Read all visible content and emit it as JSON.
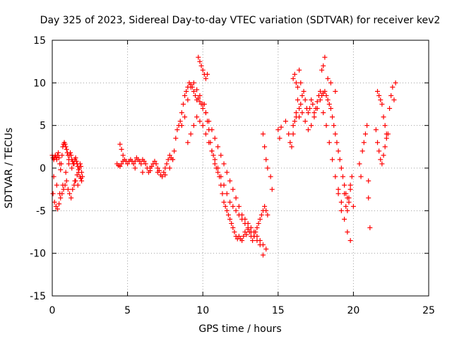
{
  "chart_data": {
    "type": "scatter",
    "title": "Day 325 of 2023, Sidereal Day-to-day VTEC variation (SDTVAR) for receiver kev2",
    "xlabel": "GPS time / hours",
    "ylabel": "SDTVAR / TECUs",
    "xlim": [
      0,
      25
    ],
    "ylim": [
      -15,
      15
    ],
    "xticks": [
      "0",
      "5",
      "10",
      "15",
      "20",
      "25"
    ],
    "yticks": [
      "-15",
      "-10",
      "-5",
      "0",
      "5",
      "10",
      "15"
    ],
    "grid": true,
    "marker": "+",
    "color": "#ff0000",
    "series": [
      {
        "name": "kev2",
        "x": [
          0.0,
          0.05,
          0.1,
          0.15,
          0.2,
          0.25,
          0.3,
          0.35,
          0.4,
          0.45,
          0.5,
          0.55,
          0.6,
          0.65,
          0.7,
          0.75,
          0.8,
          0.85,
          0.9,
          0.95,
          1.0,
          1.05,
          1.1,
          1.15,
          1.2,
          1.25,
          1.3,
          1.35,
          1.4,
          1.45,
          1.5,
          1.55,
          1.6,
          1.65,
          1.7,
          1.75,
          1.8,
          1.85,
          1.9,
          1.95,
          2.0,
          0.05,
          0.15,
          0.25,
          0.35,
          0.45,
          0.55,
          0.65,
          0.75,
          0.85,
          0.95,
          1.05,
          1.15,
          1.25,
          1.35,
          1.45,
          1.55,
          1.65,
          1.75,
          1.85,
          1.95,
          0.1,
          0.3,
          0.5,
          0.7,
          0.9,
          1.1,
          1.3,
          1.5,
          1.7,
          1.9,
          4.3,
          4.4,
          4.5,
          4.6,
          4.7,
          4.8,
          4.9,
          5.0,
          5.1,
          5.2,
          5.3,
          5.4,
          5.5,
          5.6,
          5.7,
          5.8,
          5.9,
          6.0,
          6.1,
          6.2,
          6.3,
          6.4,
          6.5,
          6.6,
          6.7,
          6.8,
          6.9,
          7.0,
          7.1,
          7.2,
          7.3,
          7.4,
          7.5,
          7.6,
          7.7,
          7.8,
          7.9,
          8.0,
          4.5,
          4.6,
          4.7,
          5.5,
          6.0,
          6.5,
          7.0,
          7.5,
          7.8,
          8.0,
          8.1,
          8.2,
          8.3,
          8.4,
          8.5,
          8.6,
          8.7,
          8.8,
          8.9,
          9.0,
          9.1,
          9.2,
          9.3,
          9.4,
          9.5,
          9.6,
          9.7,
          9.8,
          9.9,
          10.0,
          10.1,
          10.2,
          10.3,
          10.4,
          10.5,
          10.6,
          10.7,
          10.8,
          10.9,
          11.0,
          11.1,
          11.2,
          11.3,
          11.4,
          11.5,
          11.6,
          11.7,
          11.8,
          11.9,
          12.0,
          12.1,
          12.2,
          12.3,
          12.4,
          12.5,
          12.6,
          12.7,
          12.8,
          12.9,
          13.0,
          13.1,
          13.2,
          13.3,
          13.4,
          13.5,
          13.6,
          13.7,
          13.8,
          13.9,
          14.0,
          14.1,
          14.2,
          14.3,
          8.6,
          8.8,
          9.0,
          9.2,
          9.4,
          9.6,
          9.8,
          10.0,
          10.2,
          10.4,
          10.6,
          10.8,
          11.0,
          11.2,
          11.4,
          11.6,
          11.8,
          12.0,
          12.2,
          12.4,
          12.6,
          12.8,
          13.0,
          13.2,
          13.4,
          13.6,
          13.8,
          14.0,
          14.2,
          9.0,
          9.2,
          9.4,
          9.6,
          9.8,
          10.0,
          10.2,
          10.4,
          10.6,
          10.8,
          11.0,
          11.2,
          11.4,
          11.6,
          11.8,
          12.0,
          12.2,
          12.4,
          12.6,
          12.8,
          13.0,
          13.2,
          13.4,
          13.6,
          13.8,
          14.0,
          9.7,
          9.8,
          9.9,
          10.0,
          10.1,
          10.2,
          10.3,
          14.0,
          14.1,
          14.2,
          14.3,
          14.5,
          14.6,
          15.0,
          15.1,
          15.2,
          15.5,
          15.7,
          15.8,
          15.9,
          16.0,
          16.1,
          16.2,
          16.3,
          16.4,
          16.5,
          16.6,
          16.7,
          16.8,
          16.9,
          17.0,
          17.1,
          17.2,
          17.3,
          17.4,
          17.5,
          17.6,
          17.7,
          17.8,
          17.9,
          18.0,
          18.1,
          18.2,
          18.3,
          18.4,
          18.5,
          18.6,
          18.7,
          18.8,
          18.9,
          19.0,
          19.1,
          19.2,
          19.3,
          19.4,
          19.5,
          19.6,
          19.7,
          19.8,
          19.9,
          20.0,
          16.0,
          16.2,
          16.4,
          16.6,
          16.8,
          17.0,
          17.2,
          17.4,
          17.6,
          17.8,
          18.0,
          18.2,
          18.4,
          18.6,
          18.8,
          19.0,
          19.2,
          19.4,
          19.6,
          19.8,
          16.0,
          16.1,
          16.2,
          16.3,
          16.4,
          16.5,
          17.9,
          18.0,
          18.1,
          18.3,
          18.5,
          18.8,
          19.0,
          19.2,
          19.4,
          19.5,
          19.6,
          19.7,
          19.8,
          20.4,
          20.5,
          20.6,
          20.7,
          20.8,
          20.9,
          21.0,
          21.0,
          21.1,
          21.5,
          21.6,
          21.7,
          21.8,
          21.9,
          22.0,
          22.1,
          22.2,
          22.3,
          22.4,
          22.5,
          22.6,
          22.7,
          22.8,
          21.6,
          21.7,
          21.8,
          21.9,
          22.0,
          22.1,
          22.2
        ],
        "y": [
          1.5,
          1.2,
          1.0,
          1.2,
          1.5,
          1.3,
          1.0,
          1.5,
          1.8,
          1.2,
          0.5,
          -0.2,
          0.5,
          1.5,
          2.5,
          2.8,
          3.0,
          2.8,
          2.5,
          2.2,
          1.8,
          1.5,
          1.0,
          1.5,
          1.8,
          1.5,
          1.0,
          0.8,
          0.5,
          0.5,
          1.0,
          1.2,
          0.8,
          0.5,
          0.2,
          -0.2,
          0.0,
          0.5,
          0.2,
          -0.5,
          -1.0,
          -3.0,
          -4.0,
          -4.5,
          -4.8,
          -4.2,
          -3.5,
          -3.0,
          -2.5,
          -2.0,
          -1.5,
          -2.5,
          -3.0,
          -3.5,
          -2.5,
          -2.0,
          -1.5,
          -0.8,
          -0.5,
          -1.0,
          -1.5,
          -1.0,
          -2.0,
          -3.0,
          -2.0,
          -0.5,
          0.5,
          0.0,
          -1.5,
          -2.0,
          -1.2,
          0.5,
          0.3,
          0.2,
          0.5,
          0.8,
          1.0,
          0.8,
          0.5,
          0.8,
          1.0,
          0.8,
          0.5,
          0.8,
          1.2,
          1.0,
          0.8,
          0.5,
          1.0,
          0.8,
          0.5,
          0.0,
          -0.5,
          -0.3,
          0.2,
          0.5,
          0.8,
          0.5,
          0.0,
          -0.3,
          -0.8,
          -1.0,
          -0.5,
          0.0,
          0.5,
          1.0,
          1.5,
          1.2,
          1.0,
          2.8,
          2.2,
          1.5,
          0.0,
          -0.5,
          0.0,
          -0.5,
          -0.8,
          0.0,
          1.0,
          2.0,
          3.5,
          4.5,
          5.0,
          5.5,
          6.5,
          7.5,
          8.5,
          9.0,
          9.5,
          10.0,
          9.8,
          9.5,
          9.0,
          8.5,
          8.0,
          8.2,
          7.8,
          7.5,
          7.0,
          7.5,
          6.5,
          5.5,
          4.5,
          3.0,
          2.0,
          1.5,
          0.5,
          0.0,
          -0.5,
          -1.0,
          -2.0,
          -3.0,
          -4.0,
          -4.5,
          -5.0,
          -5.5,
          -6.0,
          -6.5,
          -7.0,
          -7.5,
          -8.0,
          -8.3,
          -8.0,
          -8.3,
          -8.5,
          -8.0,
          -7.5,
          -7.8,
          -7.2,
          -7.5,
          -8.0,
          -8.5,
          -8.0,
          -7.5,
          -7.0,
          -6.5,
          -6.0,
          -5.5,
          -5.0,
          -4.5,
          -5.0,
          -5.5,
          5.0,
          6.0,
          8.0,
          9.5,
          10.0,
          9.2,
          8.5,
          7.5,
          6.5,
          5.5,
          4.5,
          3.5,
          2.5,
          1.5,
          0.5,
          -0.5,
          -1.5,
          -2.5,
          -3.5,
          -4.5,
          -5.5,
          -6.0,
          -6.5,
          -7.0,
          -7.5,
          -8.0,
          -8.5,
          -9.0,
          -9.5,
          3.0,
          4.0,
          5.0,
          6.0,
          5.5,
          5.0,
          4.0,
          3.0,
          2.0,
          1.0,
          0.0,
          -1.0,
          -2.0,
          -3.0,
          -4.0,
          -4.5,
          -5.0,
          -5.5,
          -6.0,
          -6.5,
          -7.0,
          -7.5,
          -8.0,
          -8.5,
          -9.0,
          -10.2,
          13.0,
          12.5,
          12.0,
          11.5,
          11.0,
          10.5,
          11.0,
          4.0,
          2.5,
          1.0,
          0.0,
          -1.0,
          -2.5,
          4.5,
          3.5,
          4.8,
          5.5,
          4.0,
          3.0,
          2.5,
          4.0,
          5.5,
          6.5,
          8.0,
          6.0,
          7.5,
          8.5,
          9.0,
          8.0,
          7.0,
          6.5,
          7.0,
          8.0,
          7.5,
          6.5,
          7.0,
          7.8,
          8.5,
          9.0,
          8.5,
          8.8,
          9.0,
          8.5,
          8.0,
          7.5,
          7.0,
          6.0,
          5.0,
          4.0,
          3.0,
          2.0,
          1.0,
          0.0,
          -1.0,
          -2.0,
          -3.0,
          -3.5,
          -4.0,
          -2.0,
          -1.0,
          -4.5,
          5.0,
          6.0,
          7.0,
          6.5,
          5.5,
          4.5,
          5.0,
          6.0,
          7.0,
          8.0,
          6.5,
          5.0,
          3.0,
          1.0,
          -1.0,
          -3.0,
          -5.0,
          -6.0,
          -7.5,
          -8.5,
          10.5,
          11.0,
          10.0,
          9.5,
          11.5,
          10.0,
          11.5,
          12.0,
          13.0,
          10.5,
          10.0,
          9.0,
          -2.5,
          -4.0,
          -3.0,
          -4.5,
          -5.0,
          -3.5,
          -2.5,
          0.5,
          -1.0,
          2.0,
          3.0,
          4.0,
          5.0,
          -1.5,
          -3.5,
          -7.0,
          4.5,
          3.0,
          2.0,
          1.0,
          0.5,
          1.5,
          2.5,
          3.5,
          4.0,
          7.0,
          8.5,
          9.5,
          8.0,
          10.0,
          9.0,
          8.5,
          8.0,
          7.5,
          6.0,
          5.0,
          4.0
        ]
      }
    ]
  }
}
